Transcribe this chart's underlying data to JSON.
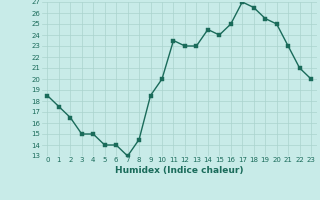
{
  "x": [
    0,
    1,
    2,
    3,
    4,
    5,
    6,
    7,
    8,
    9,
    10,
    11,
    12,
    13,
    14,
    15,
    16,
    17,
    18,
    19,
    20,
    21,
    22,
    23
  ],
  "y": [
    18.5,
    17.5,
    16.5,
    15.0,
    15.0,
    14.0,
    14.0,
    13.0,
    14.5,
    18.5,
    20.0,
    23.5,
    23.0,
    23.0,
    24.5,
    24.0,
    25.0,
    27.0,
    26.5,
    25.5,
    25.0,
    23.0,
    21.0,
    20.0
  ],
  "xlabel": "Humidex (Indice chaleur)",
  "xlim": [
    -0.5,
    23.5
  ],
  "ylim": [
    13,
    27
  ],
  "yticks": [
    13,
    14,
    15,
    16,
    17,
    18,
    19,
    20,
    21,
    22,
    23,
    24,
    25,
    26,
    27
  ],
  "xticks": [
    0,
    1,
    2,
    3,
    4,
    5,
    6,
    7,
    8,
    9,
    10,
    11,
    12,
    13,
    14,
    15,
    16,
    17,
    18,
    19,
    20,
    21,
    22,
    23
  ],
  "line_color": "#1a6b5a",
  "marker_color": "#1a6b5a",
  "bg_color": "#c8ebe8",
  "grid_color": "#aad4ce",
  "xlabel_color": "#1a6b5a",
  "tick_color": "#1a6b5a",
  "line_width": 1.0,
  "marker_size": 2.5
}
